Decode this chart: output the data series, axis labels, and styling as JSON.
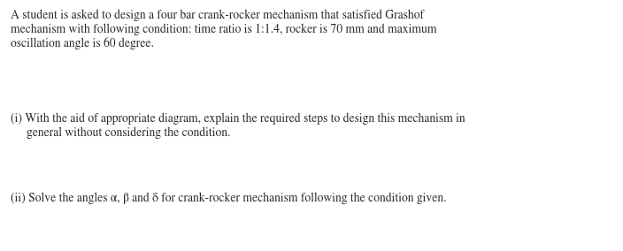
{
  "background_color": "#ffffff",
  "text_color": "#2a2a2a",
  "paragraph1_line1": "A student is asked to design a four bar crank-rocker mechanism that satisfied Grashof",
  "paragraph1_line2": "mechanism with following condition: time ratio is 1:1.4, rocker is 70 mm and maximum",
  "paragraph1_line3": "oscillation angle is 60 degree.",
  "para2_line1": "(i) With the aid of appropriate diagram, explain the required steps to design this mechanism in",
  "para2_line2": "     general without considering the condition.",
  "para3_line1": "(ii) Solve the angles α, β and δ for crank-rocker mechanism following the condition given.",
  "font_family": "STIXGeneral",
  "font_size": 9.8,
  "fig_width": 7.04,
  "fig_height": 2.84,
  "dpi": 100
}
